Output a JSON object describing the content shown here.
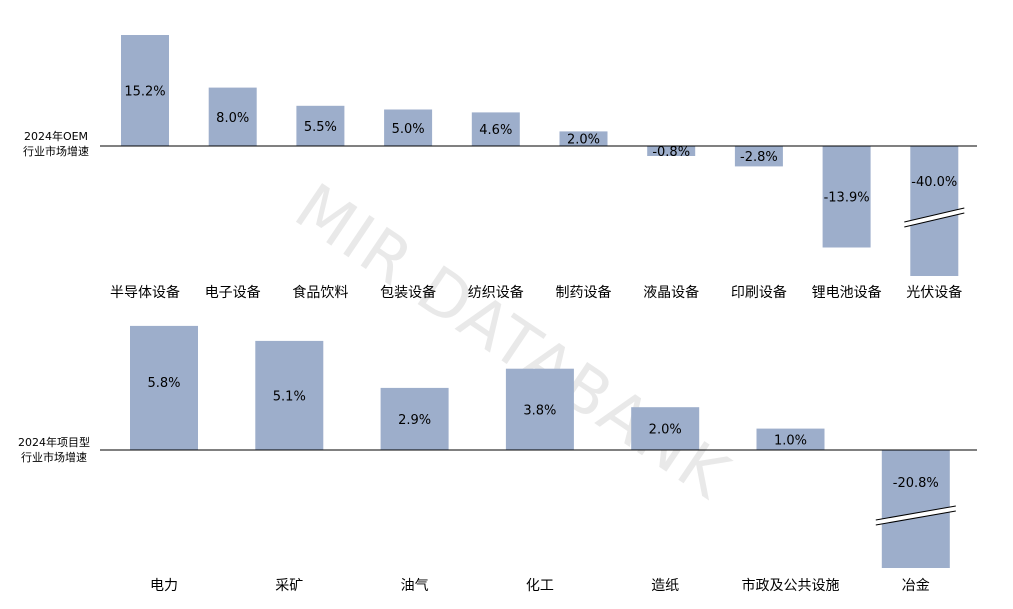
{
  "watermark": "MIR DATABANK",
  "colors": {
    "bar": "#9daecb",
    "axis": "#000000",
    "text": "#000000",
    "watermark": "#e9e9e9"
  },
  "chart_data": [
    {
      "type": "bar",
      "row_label_lines": [
        "2024年OEM",
        "行业市场增速"
      ],
      "unit": "%",
      "categories": [
        "半导体设备",
        "电子设备",
        "食品饮料",
        "包装设备",
        "纺织设备",
        "制药设备",
        "液晶设备",
        "印刷设备",
        "锂电池设备",
        "光伏设备"
      ],
      "values": [
        15.2,
        8.0,
        5.5,
        5.0,
        4.6,
        2.0,
        -0.8,
        -2.8,
        -13.9,
        -40.0
      ],
      "labels": [
        "15.2%",
        "8.0%",
        "5.5%",
        "5.0%",
        "4.6%",
        "2.0%",
        "-0.8%",
        "-2.8%",
        "-13.9%",
        "-40.0%"
      ],
      "axis_break_categories": [
        "光伏设备"
      ]
    },
    {
      "type": "bar",
      "row_label_lines": [
        "2024年项目型",
        "行业市场增速"
      ],
      "unit": "%",
      "categories": [
        "电力",
        "采矿",
        "油气",
        "化工",
        "造纸",
        "市政及公共设施",
        "冶金"
      ],
      "values": [
        5.8,
        5.1,
        2.9,
        3.8,
        2.0,
        1.0,
        -20.8
      ],
      "labels": [
        "5.8%",
        "5.1%",
        "2.9%",
        "3.8%",
        "2.0%",
        "1.0%",
        "-20.8%"
      ],
      "axis_break_categories": [
        "冶金"
      ]
    }
  ]
}
